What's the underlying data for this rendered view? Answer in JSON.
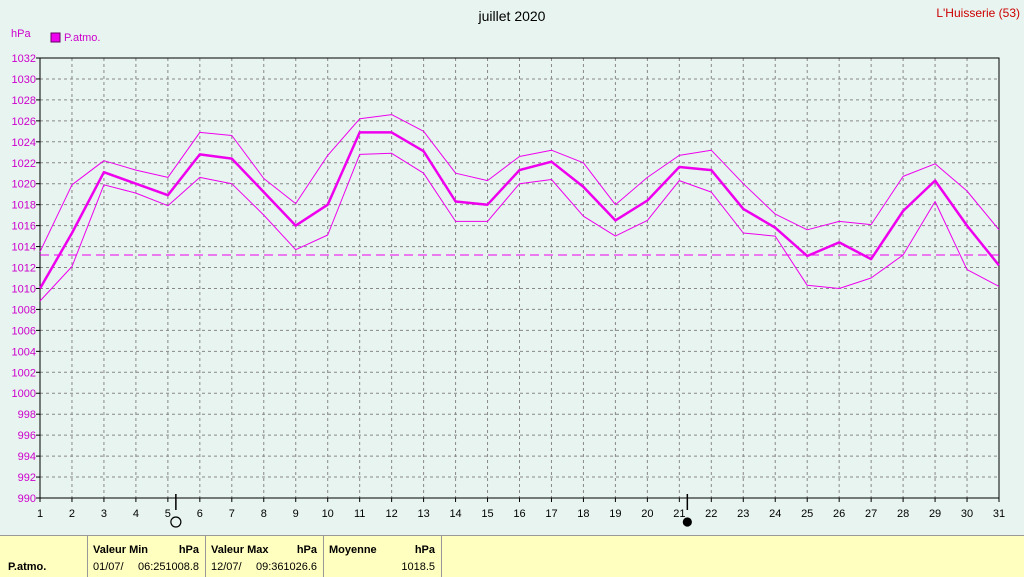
{
  "chart_data": {
    "type": "line",
    "title": "juillet 2020",
    "location": "L'Huisserie (53)",
    "ylabel": "hPa",
    "ylim": [
      990,
      1032
    ],
    "ystep": 2,
    "xlim": [
      1,
      31
    ],
    "grid": true,
    "legend": "top-left",
    "x": [
      1,
      2,
      3,
      4,
      5,
      6,
      7,
      8,
      9,
      10,
      11,
      12,
      13,
      14,
      15,
      16,
      17,
      18,
      19,
      20,
      21,
      22,
      23,
      24,
      25,
      26,
      27,
      28,
      29,
      30,
      31
    ],
    "series": [
      {
        "name": "P.atmo.",
        "role": "mean",
        "color": "#ee00ee",
        "values": [
          1010.0,
          1015.3,
          1021.1,
          1020.0,
          1018.9,
          1022.8,
          1022.4,
          1019.2,
          1016.0,
          1018.0,
          1024.9,
          1024.9,
          1023.1,
          1018.3,
          1018.0,
          1021.3,
          1022.1,
          1019.7,
          1016.5,
          1018.4,
          1021.6,
          1021.3,
          1017.6,
          1015.8,
          1013.1,
          1014.4,
          1012.8,
          1017.4,
          1020.3,
          1016.0,
          1012.2
        ]
      },
      {
        "role": "max",
        "color": "#ee00ee",
        "values": [
          1013.5,
          1019.9,
          1022.2,
          1021.3,
          1020.6,
          1024.9,
          1024.6,
          1020.5,
          1018.1,
          1022.7,
          1026.2,
          1026.6,
          1025.0,
          1021.0,
          1020.3,
          1022.6,
          1023.2,
          1022.0,
          1018.0,
          1020.6,
          1022.7,
          1023.2,
          1020.0,
          1017.1,
          1015.6,
          1016.4,
          1016.1,
          1020.7,
          1021.9,
          1019.3,
          1015.6
        ]
      },
      {
        "role": "min",
        "color": "#ee00ee",
        "values": [
          1008.8,
          1012.1,
          1019.9,
          1019.1,
          1017.9,
          1020.6,
          1020.0,
          1017.0,
          1013.7,
          1015.1,
          1022.8,
          1022.9,
          1021.0,
          1016.4,
          1016.4,
          1020.0,
          1020.4,
          1016.9,
          1015.0,
          1016.5,
          1020.3,
          1019.2,
          1015.3,
          1015.0,
          1010.3,
          1010.0,
          1011.0,
          1013.2,
          1018.3,
          1011.8,
          1010.2
        ]
      }
    ],
    "mean_line": 1013.2,
    "moon_markers": [
      {
        "day": 5,
        "phase": "full"
      },
      {
        "day": 21,
        "phase": "new"
      }
    ]
  },
  "footer": {
    "row_label": "P.atmo.",
    "min": {
      "label": "Valeur Min",
      "unit": "hPa",
      "date": "01/07/",
      "time": "06:25",
      "value": "1008.8"
    },
    "max": {
      "label": "Valeur Max",
      "unit": "hPa",
      "date": "12/07/",
      "time": "09:36",
      "value": "1026.6"
    },
    "avg": {
      "label": "Moyenne",
      "unit": "hPa",
      "value": "1018.5"
    }
  }
}
